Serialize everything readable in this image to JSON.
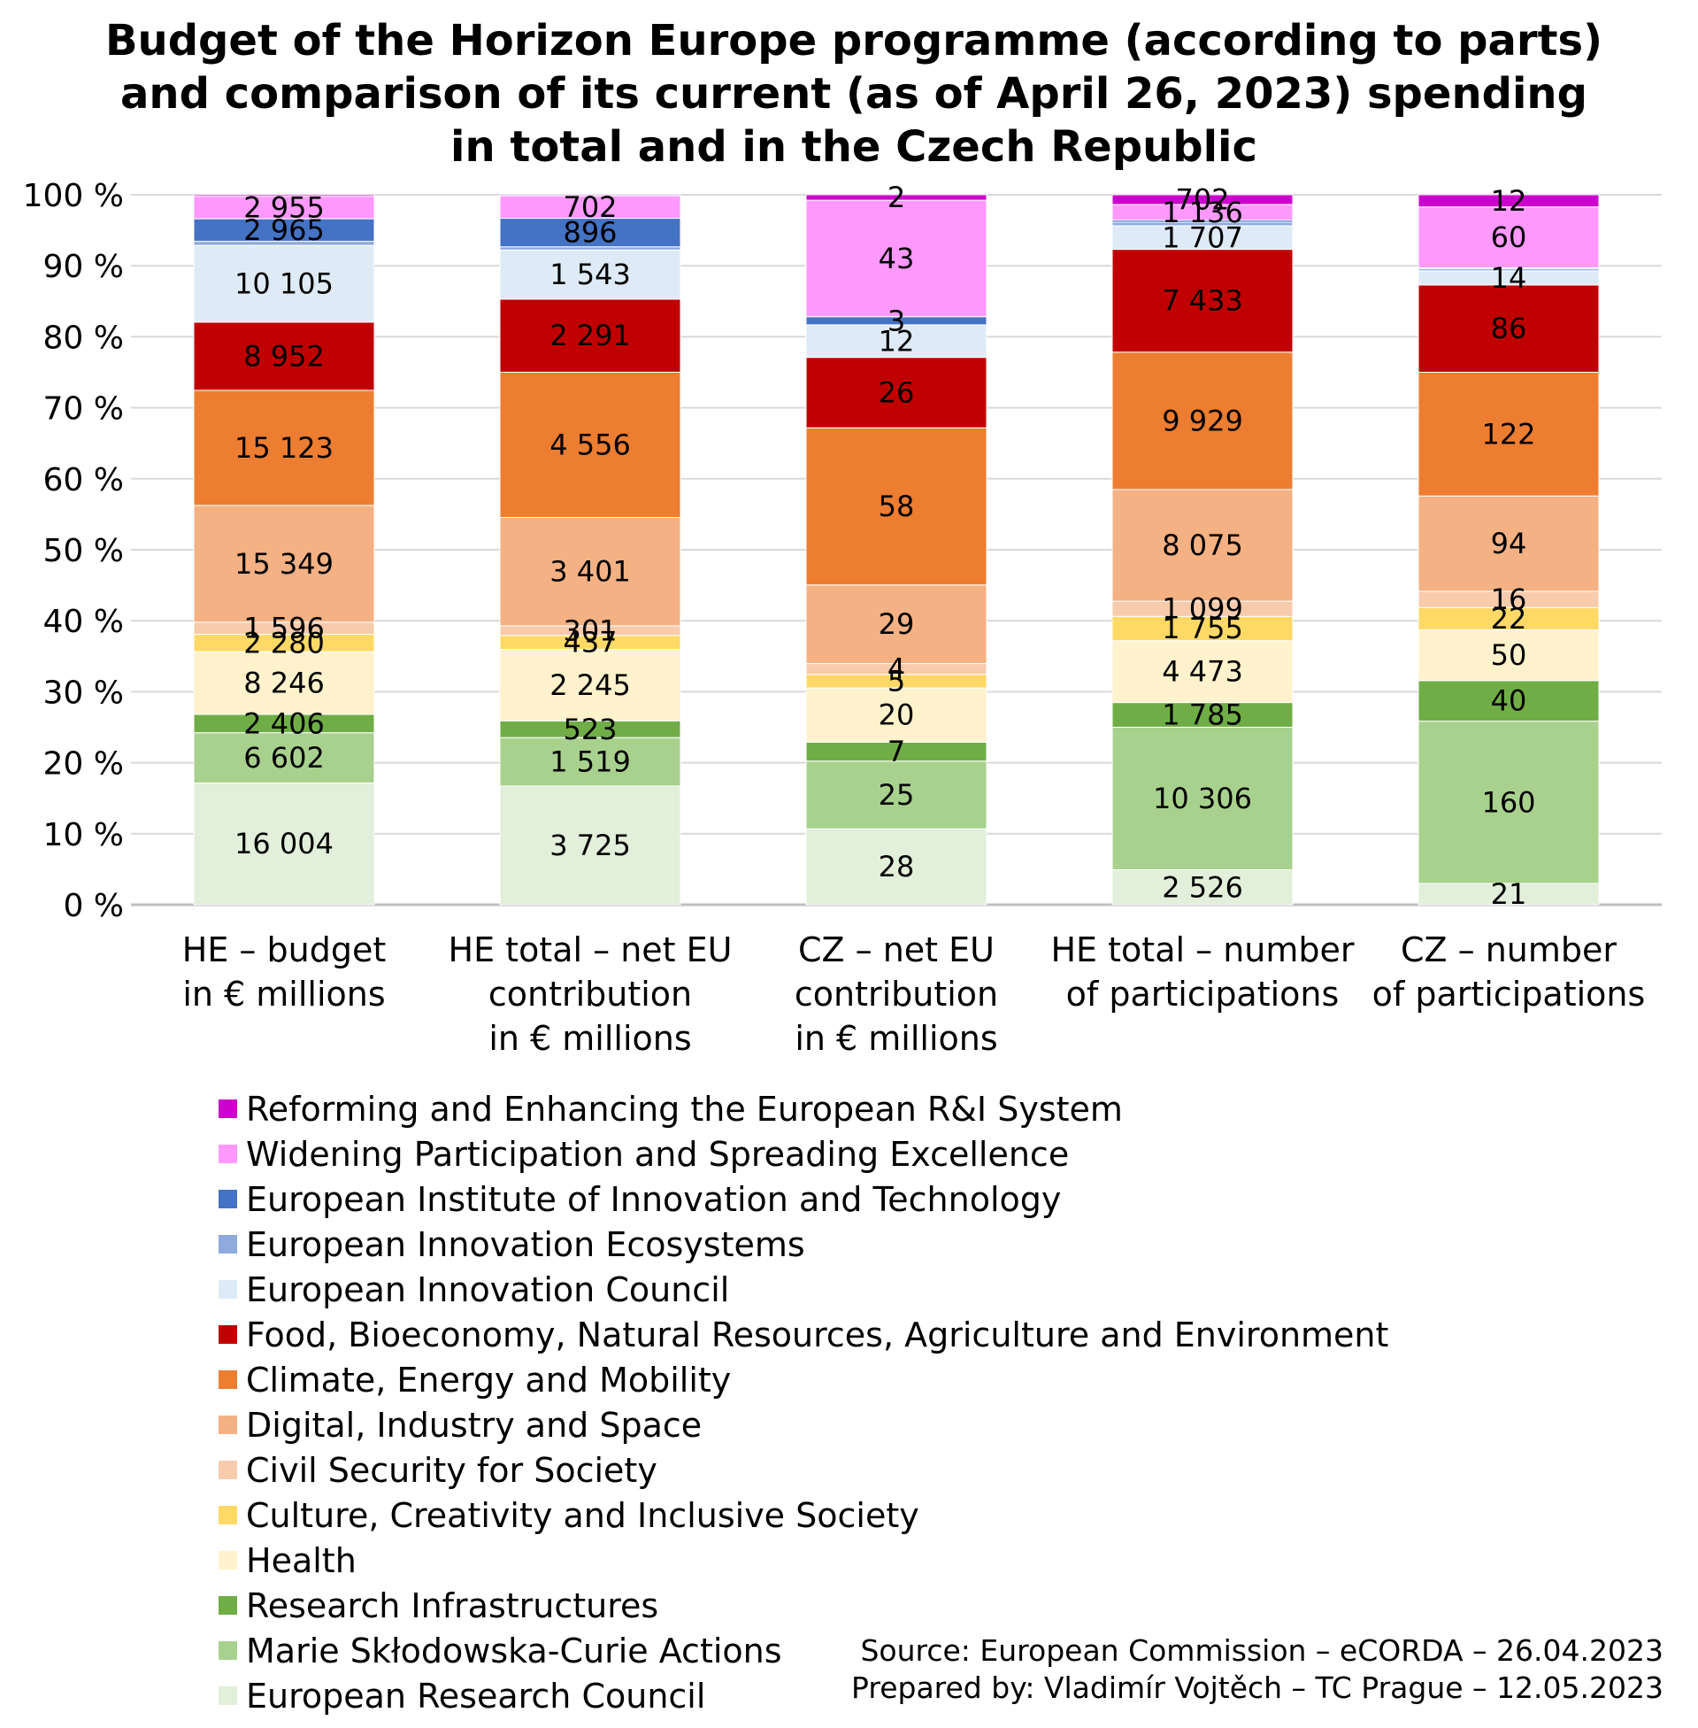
{
  "chart_data": {
    "type": "bar",
    "stacking": "percent",
    "title": [
      "Budget of the Horizon Europe programme (according to parts)",
      "and comparison of its current (as of April 26, 2023) spending",
      "in total and in the Czech Republic"
    ],
    "xlabel": "",
    "ylabel": "",
    "ylim": [
      0,
      100
    ],
    "y_ticks": [
      "0 %",
      "10 %",
      "20 %",
      "30 %",
      "40 %",
      "50 %",
      "60 %",
      "70 %",
      "80 %",
      "90 %",
      "100 %"
    ],
    "grid": true,
    "legend_position": "bottom",
    "categories": [
      [
        "HE – budget",
        "in € millions"
      ],
      [
        "HE total – net EU",
        "contribution",
        "in € millions"
      ],
      [
        "CZ – net EU",
        "contribution",
        "in € millions"
      ],
      [
        "HE total – number",
        "of participations"
      ],
      [
        "CZ – number",
        "of participations"
      ]
    ],
    "series": [
      {
        "name": "European Research Council",
        "color": "#e2efda",
        "values": [
          16004,
          3725,
          28,
          2526,
          21
        ],
        "labels": [
          "16 004",
          "3 725",
          "28",
          "2 526",
          "21"
        ]
      },
      {
        "name": "Marie Skłodowska-Curie Actions",
        "color": "#a9d18e",
        "values": [
          6602,
          1519,
          25,
          10306,
          160
        ],
        "labels": [
          "6 602",
          "1 519",
          "25",
          "10 306",
          "160"
        ]
      },
      {
        "name": "Research Infrastructures",
        "color": "#70ad47",
        "values": [
          2406,
          523,
          7,
          1785,
          40
        ],
        "labels": [
          "2 406",
          "523",
          "7",
          "1 785",
          "40"
        ]
      },
      {
        "name": "Health",
        "color": "#fff2cc",
        "values": [
          8246,
          2245,
          20,
          4473,
          50
        ],
        "labels": [
          "8 246",
          "2 245",
          "20",
          "4 473",
          "50"
        ]
      },
      {
        "name": "Culture, Creativity and Inclusive Society",
        "color": "#ffd966",
        "values": [
          2280,
          437,
          5,
          1755,
          22
        ],
        "labels": [
          "2 280",
          "437",
          "5",
          "1 755",
          "22"
        ]
      },
      {
        "name": "Civil Security for Society",
        "color": "#f8cbad",
        "values": [
          1596,
          301,
          4,
          1099,
          16
        ],
        "labels": [
          "1 596",
          "301",
          "4",
          "1 099",
          "16"
        ]
      },
      {
        "name": "Digital, Industry and Space",
        "color": "#f4b183",
        "values": [
          15349,
          3401,
          29,
          8075,
          94
        ],
        "labels": [
          "15 349",
          "3 401",
          "29",
          "8 075",
          "94"
        ]
      },
      {
        "name": "Climate, Energy and Mobility",
        "color": "#ed7d31",
        "values": [
          15123,
          4556,
          58,
          9929,
          122
        ],
        "labels": [
          "15 123",
          "4 556",
          "58",
          "9 929",
          "122"
        ]
      },
      {
        "name": "Food, Bioeconomy, Natural Resources, Agriculture and Environment",
        "color": "#c00000",
        "values": [
          8952,
          2291,
          26,
          7433,
          86
        ],
        "labels": [
          "8 952",
          "2 291",
          "26",
          "7 433",
          "86"
        ]
      },
      {
        "name": "European Innovation Council",
        "color": "#deebf7",
        "values": [
          10105,
          1543,
          12,
          1707,
          14
        ],
        "labels": [
          "10 105",
          "1 543",
          "12",
          "1 707",
          "14"
        ]
      },
      {
        "name": "European Innovation Ecosystems",
        "color": "#8faadc",
        "values": [
          527,
          100,
          0,
          250,
          2
        ],
        "labels": [
          "",
          "",
          "",
          "",
          ""
        ]
      },
      {
        "name": "European Institute of Innovation and Technology",
        "color": "#4472c4",
        "values": [
          2965,
          896,
          3,
          150,
          1
        ],
        "labels": [
          "2 965",
          "896",
          "3",
          "",
          ""
        ]
      },
      {
        "name": "Widening Participation and Spreading Excellence",
        "color": "#ff99ff",
        "values": [
          2955,
          702,
          43,
          1136,
          60
        ],
        "labels": [
          "2 955",
          "702",
          "43",
          "1 136",
          "60"
        ]
      },
      {
        "name": "Reforming and Enhancing the European R&I System",
        "color": "#cc00cc",
        "values": [
          200,
          35,
          2,
          702,
          12
        ],
        "labels": [
          "",
          "",
          "2",
          "702",
          "12"
        ]
      }
    ],
    "source": [
      "Source: European Commission – eCORDA – 26.04.2023",
      "Prepared by: Vladimír Vojtěch – TC Prague – 12.05.2023"
    ]
  }
}
